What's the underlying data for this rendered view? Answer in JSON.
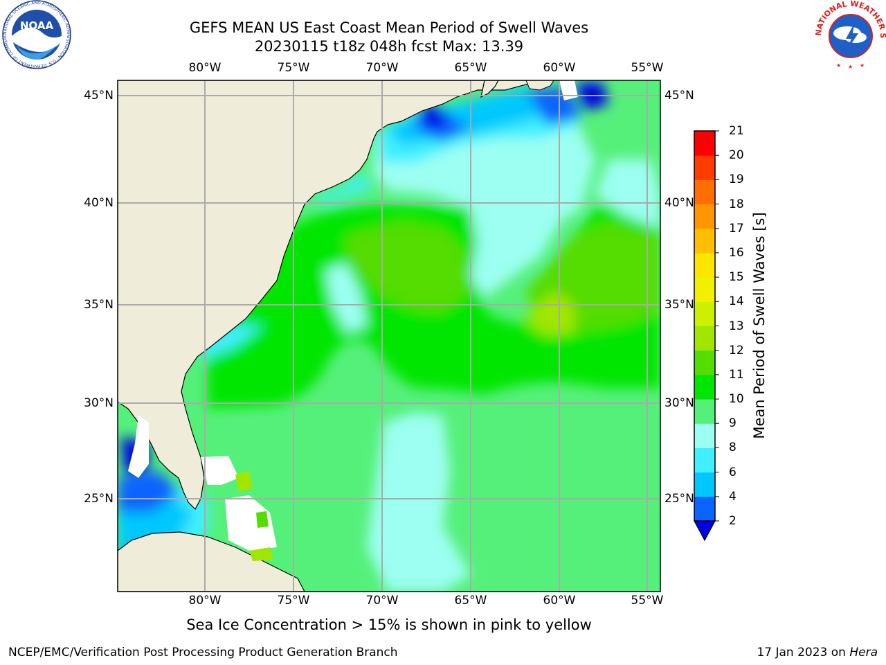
{
  "title": {
    "line1": "GEFS MEAN US East Coast Mean Period of Swell Waves",
    "line2": "20230115 t18z 048h fcst   Max: 13.39"
  },
  "logos": {
    "noaa": {
      "text": "NOAA",
      "ring": "NATIONAL OCEANIC AND ATMOSPHERIC ADMINISTRATION · U.S. DEPARTMENT OF COMMERCE"
    },
    "nws": {
      "ring": "NATIONAL WEATHER SERVICE"
    }
  },
  "map": {
    "lon_ticks": [
      "80°W",
      "75°W",
      "70°W",
      "65°W",
      "60°W",
      "55°W"
    ],
    "lat_ticks": [
      "45°N",
      "40°N",
      "35°N",
      "30°N",
      "25°N"
    ],
    "land_color": "#efedd9",
    "ocean_base_color": "#55f07a"
  },
  "colorbar": {
    "label": "Mean Period of Swell Waves [s]",
    "ticks": [
      "2",
      "4",
      "6",
      "8",
      "9",
      "10",
      "11",
      "12",
      "13",
      "14",
      "15",
      "16",
      "17",
      "18",
      "19",
      "20",
      "21"
    ],
    "colors": [
      "#0a64ff",
      "#00c8ff",
      "#40f0ff",
      "#9cfff2",
      "#55f07a",
      "#00e600",
      "#55dc00",
      "#a0e600",
      "#cdf000",
      "#f0f000",
      "#ffe600",
      "#ffbe00",
      "#ff9600",
      "#ff6e00",
      "#ff3c00",
      "#ff0000"
    ],
    "under_color": "#0000e6"
  },
  "note": "Sea Ice Concentration > 15% is shown in pink to yellow",
  "footer": {
    "credit": "NCEP/EMC/Verification Post Processing Product Generation Branch",
    "date": "17 Jan 2023 on ",
    "host": "Hera"
  }
}
